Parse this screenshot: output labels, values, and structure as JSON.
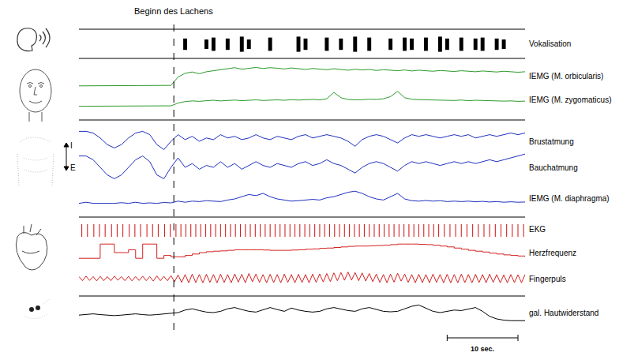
{
  "chart_data": {
    "type": "line",
    "tick_labels": false,
    "grid": false,
    "xlim": [
      0,
      63
    ],
    "ylim": [
      0,
      10
    ],
    "x": [
      0,
      1,
      2,
      3,
      4,
      5,
      6,
      7,
      8,
      9,
      10,
      11,
      12,
      13,
      14,
      15,
      16,
      17,
      18,
      19,
      20,
      21,
      22,
      23,
      24,
      25,
      26,
      27,
      28,
      29,
      30,
      31,
      32,
      33,
      34,
      35,
      36,
      37,
      38,
      39,
      40,
      41,
      42,
      43,
      44,
      45,
      46,
      47,
      48,
      49,
      50,
      51,
      52,
      53,
      54,
      55,
      56,
      57,
      58,
      59,
      60,
      61,
      62,
      63
    ],
    "series": [
      {
        "name": "Vokalisation",
        "color": "#000000",
        "type": "bar",
        "marker": "burst",
        "values": [
          0,
          0,
          0,
          0,
          0,
          0,
          0,
          0,
          0,
          0,
          0,
          0,
          0,
          0,
          0,
          6,
          0,
          0,
          5,
          7,
          0,
          6,
          0,
          8,
          5,
          0,
          0,
          7,
          0,
          0,
          0,
          8,
          6,
          0,
          0,
          7,
          0,
          6,
          0,
          8,
          0,
          7,
          0,
          0,
          6,
          0,
          7,
          6,
          0,
          7,
          0,
          8,
          6,
          0,
          7,
          0,
          6,
          7,
          0,
          6,
          5,
          0,
          0,
          0
        ]
      },
      {
        "name": "IEMG (M. orbicularis)",
        "color": "#2a9a2a",
        "values": [
          1,
          1,
          1,
          1,
          1,
          1,
          1,
          1,
          1,
          1,
          1,
          1,
          1,
          1.2,
          4.5,
          6,
          6.5,
          5.8,
          6.6,
          7,
          7.4,
          7.8,
          8.2,
          7.6,
          8,
          8.3,
          7.9,
          8.2,
          8,
          7.7,
          8.1,
          7.8,
          7.5,
          7.9,
          7.6,
          7.4,
          7.8,
          7.5,
          7.2,
          7.6,
          7.3,
          7.5,
          7.1,
          7.4,
          7.2,
          7,
          7.3,
          6.9,
          7.2,
          7,
          6.8,
          7.1,
          6.9,
          6.7,
          7,
          6.8,
          6.6,
          6.9,
          6.7,
          6.5,
          6.8,
          6.6,
          6.4,
          6.6
        ]
      },
      {
        "name": "IEMG (M. zygomaticus)",
        "color": "#2a9a2a",
        "values": [
          2,
          2,
          2,
          2,
          2,
          2,
          2,
          2,
          2,
          2,
          2,
          2,
          2,
          2.2,
          3.5,
          4.2,
          4.5,
          4.3,
          4.6,
          4.8,
          4.5,
          4.7,
          4.9,
          4.6,
          4.8,
          5,
          4.7,
          4.9,
          5,
          4.8,
          5.1,
          4.9,
          5,
          5.2,
          5,
          5.5,
          8.5,
          6,
          5.2,
          5,
          5.1,
          5.3,
          5.2,
          5.5,
          6.5,
          9,
          6,
          5.3,
          5.1,
          5,
          4.9,
          5,
          4.8,
          4.7,
          4.9,
          4.6,
          4.8,
          4.7,
          4.5,
          4.6,
          4.4,
          4.5,
          4.3,
          4.4
        ]
      },
      {
        "name": "Brustatmung",
        "color": "#1f2fbf",
        "values": [
          8,
          8,
          7.5,
          6,
          4,
          3,
          4,
          6,
          7.5,
          8,
          7,
          4,
          2.5,
          5,
          7,
          5.5,
          6.5,
          5,
          6,
          5.5,
          7,
          6,
          6.5,
          5.5,
          6,
          7,
          6,
          5.5,
          6.5,
          6,
          5.5,
          6.5,
          7,
          6,
          6.5,
          7,
          6.5,
          6,
          5,
          3.5,
          5.5,
          6.5,
          7,
          6.5,
          5.5,
          4.5,
          6,
          7,
          6.5,
          7,
          6.5,
          6,
          6.5,
          7,
          6.5,
          7,
          6,
          6.5,
          7,
          6.5,
          7,
          7.5,
          7,
          7.5
        ]
      },
      {
        "name": "Bauchatmung",
        "color": "#1f2fbf",
        "values": [
          8,
          8,
          7,
          5,
          3,
          2,
          3,
          5,
          7,
          8,
          6.5,
          3,
          2,
          5,
          7.5,
          5,
          6,
          4.5,
          5.5,
          5,
          6.5,
          5,
          6,
          4.5,
          5.5,
          6.5,
          5.5,
          5,
          6,
          5.5,
          5,
          6,
          6.5,
          5.5,
          6,
          7,
          6,
          5.5,
          4.5,
          3.5,
          5,
          6,
          6.5,
          6,
          5,
          4,
          5.5,
          6.5,
          6,
          6.5,
          6,
          5.5,
          6,
          6.5,
          6,
          6.5,
          6,
          6.5,
          7,
          6.5,
          7,
          7.5,
          8,
          8.5
        ]
      },
      {
        "name": "IEMG (M. diaphragma)",
        "color": "#1f2fbf",
        "values": [
          3,
          3.5,
          3,
          3,
          3.2,
          3,
          3.3,
          3,
          3.5,
          3,
          3.2,
          3,
          3.4,
          3.2,
          4,
          3.5,
          4,
          3.8,
          4.2,
          4,
          3.8,
          4.5,
          5,
          6,
          7,
          6.5,
          7.5,
          6,
          5,
          4.5,
          4,
          4.2,
          4.5,
          4.8,
          4.5,
          5.5,
          6,
          7,
          8,
          8.5,
          7.5,
          6,
          5,
          4.5,
          6,
          7.5,
          5,
          4.2,
          4,
          4.3,
          4,
          4.2,
          3.8,
          4,
          3.8,
          4,
          3.7,
          3.9,
          3.6,
          3.8,
          3.5,
          3.7,
          3.5,
          3.6
        ]
      },
      {
        "name": "EKG",
        "color": "#d42020",
        "type": "bar",
        "marker": "spike",
        "x": [
          0.4,
          1.2,
          2.1,
          2.9,
          3.7,
          4.6,
          5.4,
          6.2,
          7.1,
          7.9,
          8.7,
          9.6,
          10.4,
          11.2,
          12.1,
          12.9,
          13.7,
          14.4,
          15.1,
          15.8,
          16.5,
          17.2,
          17.9,
          18.6,
          19.3,
          20,
          20.7,
          21.4,
          22.1,
          22.8,
          23.5,
          24.2,
          24.9,
          25.6,
          26.3,
          27,
          27.7,
          28.4,
          29.1,
          29.8,
          30.5,
          31.2,
          31.9,
          32.6,
          33.3,
          34,
          34.7,
          35.4,
          36.1,
          36.8,
          37.5,
          38.2,
          38.9,
          39.6,
          40.3,
          41,
          41.7,
          42.4,
          43.1,
          43.8,
          44.5,
          45.2,
          45.9,
          46.6,
          47.3,
          48,
          48.7,
          49.4,
          50.1,
          50.8,
          51.6,
          52.4,
          53.2,
          54,
          54.8,
          55.6,
          56.4,
          57.2,
          58,
          58.8,
          59.6,
          60.4,
          61.2,
          62,
          62.8
        ],
        "values": [
          8,
          8,
          8,
          8,
          8,
          8,
          8,
          8,
          8,
          8,
          8,
          8,
          8,
          8,
          8,
          8,
          8,
          8,
          8,
          8,
          8,
          8,
          8,
          8,
          8,
          8,
          8,
          8,
          8,
          8,
          8,
          8,
          8,
          8,
          8,
          8,
          8,
          8,
          8,
          8,
          8,
          8,
          8,
          8,
          8,
          8,
          8,
          8,
          8,
          8,
          8,
          8,
          8,
          8,
          8,
          8,
          8,
          8,
          8,
          8,
          8,
          8,
          8,
          8,
          8,
          8,
          8,
          8,
          8,
          8,
          8,
          8,
          8,
          8,
          8,
          8,
          8,
          8,
          8,
          8,
          8,
          8,
          8,
          8,
          8
        ]
      },
      {
        "name": "Herzfrequenz",
        "color": "#d42020",
        "line_style": "steps",
        "values": [
          3,
          3,
          3,
          8,
          8,
          5,
          5,
          6,
          3,
          8,
          8,
          3,
          4,
          3.5,
          3.5,
          4,
          4.5,
          5,
          5.3,
          5.5,
          5.6,
          5.8,
          6,
          6,
          6,
          6,
          5.9,
          5.8,
          5.8,
          5.8,
          5.9,
          6,
          6.2,
          6.3,
          6.5,
          6.6,
          6.8,
          7,
          7.2,
          7.3,
          7.3,
          7.4,
          7.5,
          7.6,
          7.8,
          8,
          8,
          8,
          7.9,
          7.8,
          7.6,
          7.3,
          7,
          6.6,
          6.2,
          5.8,
          5.5,
          5.2,
          4.8,
          4.5,
          4.2,
          4,
          3.8,
          3.5
        ]
      },
      {
        "name": "Fingerpuls",
        "color": "#d42020",
        "x": [
          0,
          0.5,
          1,
          1.5,
          2,
          2.5,
          3,
          3.5,
          4,
          4.5,
          5,
          5.5,
          6,
          6.5,
          7,
          7.5,
          8,
          8.5,
          9,
          9.5,
          10,
          10.5,
          11,
          11.5,
          12,
          12.5,
          13,
          13.5,
          14,
          14.5,
          15,
          15.5,
          16,
          16.5,
          17,
          17.5,
          18,
          18.5,
          19,
          19.5,
          20,
          20.5,
          21,
          21.5,
          22,
          22.5,
          23,
          23.5,
          24,
          24.5,
          25,
          25.5,
          26,
          26.5,
          27,
          27.5,
          28,
          28.5,
          29,
          29.5,
          30,
          30.5,
          31,
          31.5,
          32,
          32.5,
          33,
          33.5,
          34,
          34.5,
          35,
          35.5,
          36,
          36.5,
          37,
          37.5,
          38,
          38.5,
          39,
          39.5,
          40,
          40.5,
          41,
          41.5,
          42,
          42.5,
          43,
          43.5,
          44,
          44.5,
          45,
          45.5,
          46,
          46.5,
          47,
          47.5,
          48,
          48.5,
          49,
          49.5,
          50,
          50.5,
          51,
          51.5,
          52,
          52.5,
          53,
          53.5,
          54,
          54.5,
          55,
          55.5,
          56,
          56.5,
          57,
          57.5,
          58,
          58.5,
          59,
          59.5,
          60,
          60.5,
          61,
          61.5,
          62,
          62.5,
          63
        ],
        "values": [
          6,
          4,
          6.2,
          4.1,
          6,
          3.9,
          6.1,
          4,
          6,
          4,
          6.2,
          4.2,
          6,
          4,
          6.1,
          3.9,
          6,
          4.1,
          6.2,
          4,
          6,
          3.8,
          6.3,
          4,
          6.1,
          4,
          6.5,
          3.5,
          6.8,
          3.2,
          7,
          3,
          7.2,
          3.1,
          7,
          3,
          7.1,
          3.2,
          7,
          3,
          7.2,
          3.1,
          7,
          3,
          7.3,
          3.3,
          7.1,
          3,
          7.5,
          3.5,
          7.2,
          3.2,
          7,
          3,
          7.1,
          3.1,
          7,
          3,
          7.2,
          3.2,
          7,
          3,
          7.1,
          3.1,
          7,
          3,
          7.2,
          3.2,
          7.3,
          3.4,
          7.5,
          3.6,
          7.8,
          4,
          8,
          4.2,
          8.2,
          4.3,
          8,
          4,
          7.8,
          3.8,
          7.5,
          3.5,
          7.2,
          3.2,
          7,
          3,
          7.2,
          3.3,
          7.6,
          3.8,
          7.2,
          3.2,
          7,
          3,
          7.1,
          3.1,
          7,
          3,
          7.2,
          3.2,
          7,
          3,
          7.1,
          3,
          7,
          3,
          7.2,
          3.1,
          7,
          3,
          7.1,
          3.1,
          7,
          3,
          7.2,
          3.2,
          7,
          3,
          6.8,
          3,
          7,
          3.1,
          6.9,
          3,
          7
        ]
      },
      {
        "name": "gal. Hautwiderstand",
        "color": "#000000",
        "values": [
          4,
          4.2,
          4.5,
          4.2,
          4,
          3.8,
          4,
          4.3,
          4.5,
          4.2,
          4,
          4.2,
          4.5,
          4.6,
          5,
          6,
          6.5,
          5.8,
          5.2,
          5,
          5.5,
          6.5,
          7,
          6.2,
          5.5,
          5.2,
          6,
          7,
          6.2,
          5.5,
          6.8,
          6,
          5.5,
          5.2,
          5.5,
          6.5,
          7,
          6.3,
          5.8,
          5.5,
          6.5,
          7,
          6.2,
          5.5,
          5.3,
          5.5,
          6.5,
          7.5,
          8,
          6.8,
          5.5,
          5,
          5.5,
          6,
          5.8,
          6.5,
          7,
          5.5,
          3.5,
          2.5,
          2,
          1.8,
          1.8,
          1.8
        ]
      }
    ],
    "annotations": [
      {
        "text": "Beginn des Lachens",
        "x": 13.4,
        "line_style": "dashed"
      }
    ],
    "scale_bar": {
      "label": "10 sec.",
      "start": 52,
      "end": 62
    },
    "arrow_labels": {
      "up": "I",
      "down": "E"
    }
  }
}
